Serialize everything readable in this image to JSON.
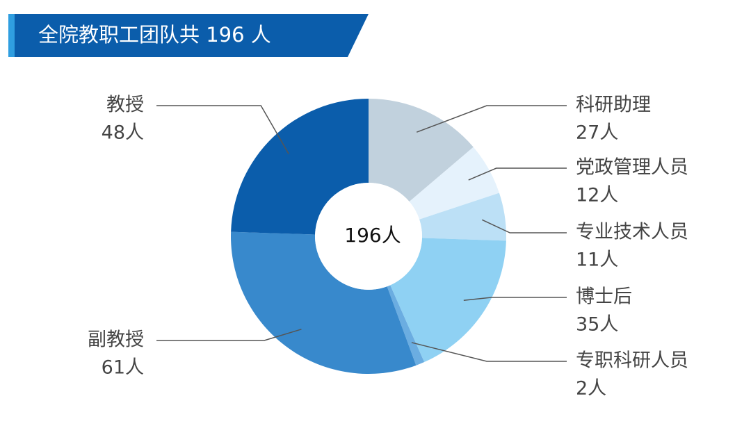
{
  "chart_data": {
    "type": "donut",
    "title": "全院教职工团队共 196 人",
    "center_label": "196人",
    "categories": [
      "科研助理",
      "党政管理人员",
      "专业技术人员",
      "博士后",
      "专职科研人员",
      "副教授",
      "教授"
    ],
    "values": [
      27,
      12,
      11,
      35,
      2,
      61,
      48
    ],
    "value_labels": [
      "27人",
      "12人",
      "11人",
      "35人",
      "2人",
      "61人",
      "48人"
    ],
    "colors": [
      "#c1d1dd",
      "#e5f2fc",
      "#bce0f6",
      "#8fd1f3",
      "#6badE1",
      "#3889cc",
      "#0b5dab"
    ]
  }
}
